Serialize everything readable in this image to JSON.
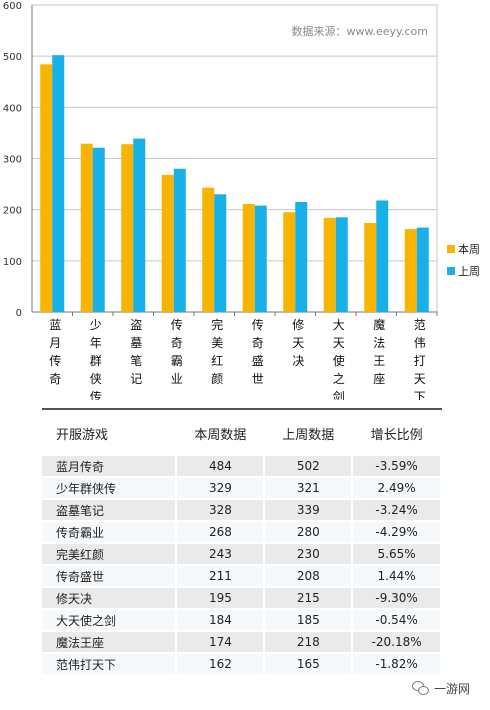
{
  "chart_data": {
    "type": "bar",
    "categories": [
      "蓝月传奇",
      "少年群侠传",
      "盗墓笔记",
      "传奇霸业",
      "完美红颜",
      "传奇盛世",
      "修天决",
      "大天使之剑",
      "魔法王座",
      "范伟打天下"
    ],
    "series": [
      {
        "name": "本周",
        "values": [
          484,
          329,
          328,
          268,
          243,
          211,
          195,
          184,
          174,
          162
        ]
      },
      {
        "name": "上周",
        "values": [
          502,
          321,
          339,
          280,
          230,
          208,
          215,
          185,
          218,
          165
        ]
      }
    ],
    "ylim": [
      0,
      600
    ],
    "yticks": [
      0,
      100,
      200,
      300,
      400,
      500,
      600
    ],
    "grid": true,
    "legend": "right",
    "annotation": "数据来源：www.eeyy.com",
    "colors": {
      "本周": "#f7b400",
      "上周": "#18b0e8",
      "grid": "#c8c8c8",
      "axis": "#777777"
    }
  },
  "table": {
    "headers": [
      "开服游戏",
      "本周数据",
      "上周数据",
      "增长比例"
    ],
    "rows": [
      [
        "蓝月传奇",
        "484",
        "502",
        "-3.59%"
      ],
      [
        "少年群侠传",
        "329",
        "321",
        "2.49%"
      ],
      [
        "盗墓笔记",
        "328",
        "339",
        "-3.24%"
      ],
      [
        "传奇霸业",
        "268",
        "280",
        "-4.29%"
      ],
      [
        "完美红颜",
        "243",
        "230",
        "5.65%"
      ],
      [
        "传奇盛世",
        "211",
        "208",
        "1.44%"
      ],
      [
        "修天决",
        "195",
        "215",
        "-9.30%"
      ],
      [
        "大天使之剑",
        "184",
        "185",
        "-0.54%"
      ],
      [
        "魔法王座",
        "174",
        "218",
        "-20.18%"
      ],
      [
        "范伟打天下",
        "162",
        "165",
        "-1.82%"
      ]
    ]
  },
  "watermark": {
    "text": "一游网",
    "icon": "wechat-icon"
  }
}
